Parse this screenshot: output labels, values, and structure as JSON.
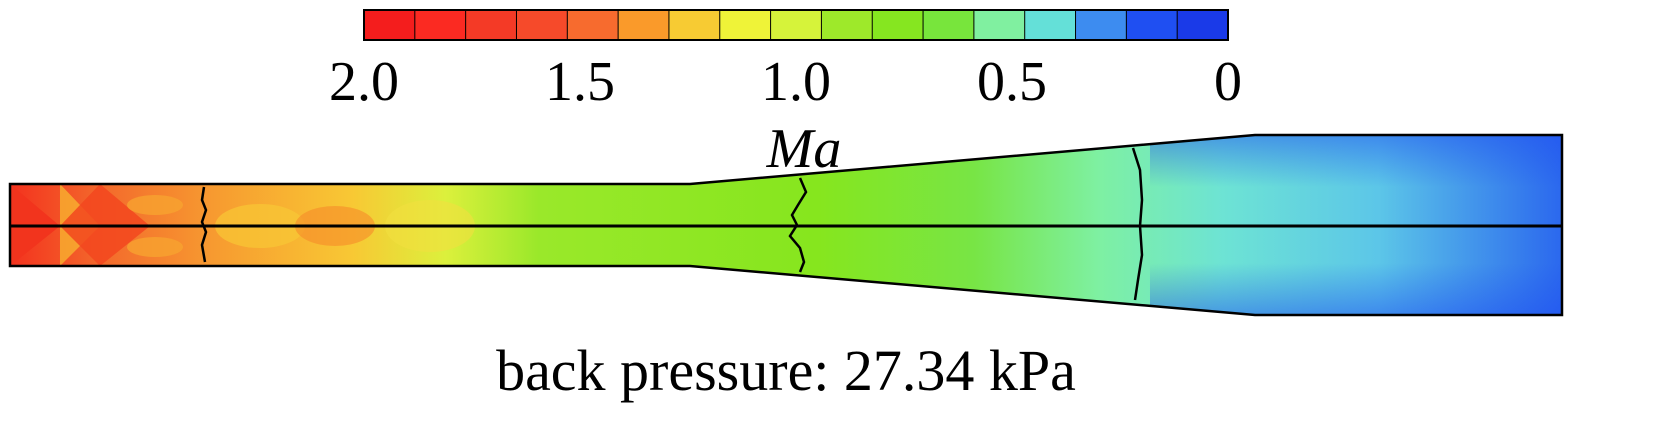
{
  "colorbar": {
    "label": "Ma",
    "ticks": [
      {
        "value": 2.0,
        "label": "2.0"
      },
      {
        "value": 1.5,
        "label": "1.5"
      },
      {
        "value": 1.0,
        "label": "1.0"
      },
      {
        "value": 0.5,
        "label": "0.5"
      },
      {
        "value": 0,
        "label": "0"
      }
    ],
    "range": [
      2.0,
      0
    ],
    "colors": [
      "#f41d1d",
      "#fb2a22",
      "#f43a26",
      "#f64a2a",
      "#f76b2e",
      "#fa9a2a",
      "#f7cb33",
      "#eff338",
      "#d6f33a",
      "#9ee92a",
      "#86e620",
      "#78e53c",
      "#80f0a0",
      "#64e0d8",
      "#3d8cf0",
      "#1f4ff2",
      "#1a3ae8"
    ]
  },
  "annotation": {
    "caption": "back pressure: 27.34 kPa"
  },
  "nozzle_field": {
    "quantity": "Ma",
    "inlet_mach": 2.0,
    "outlet_mach": 0.3,
    "shock_count": 3
  }
}
